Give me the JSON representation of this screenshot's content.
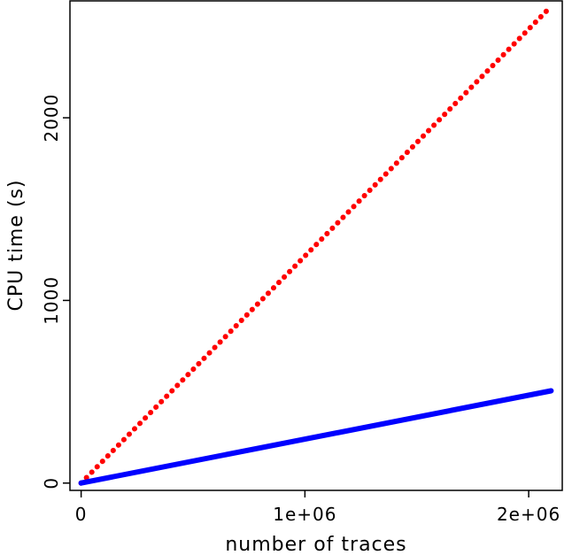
{
  "chart_data": {
    "type": "line",
    "title": "",
    "xlabel": "number of traces",
    "ylabel": "CPU time (s)",
    "xlim": [
      -50000,
      2150000
    ],
    "ylim": [
      -40,
      2640
    ],
    "x_ticks": [
      {
        "value": 0,
        "label": "0"
      },
      {
        "value": 1000000,
        "label": "1e+06"
      },
      {
        "value": 2000000,
        "label": "2e+06"
      }
    ],
    "y_ticks": [
      {
        "value": 0,
        "label": "0"
      },
      {
        "value": 1000,
        "label": "1000"
      },
      {
        "value": 2000,
        "label": "2000"
      }
    ],
    "grid": false,
    "legend": "none",
    "series": [
      {
        "color": "#ff0000",
        "style": "dotted",
        "x": [
          0,
          2100000
        ],
        "y": [
          0,
          2610
        ]
      },
      {
        "color": "#0000ff",
        "style": "solid",
        "x": [
          0,
          2100000
        ],
        "y": [
          0,
          505
        ]
      }
    ]
  }
}
